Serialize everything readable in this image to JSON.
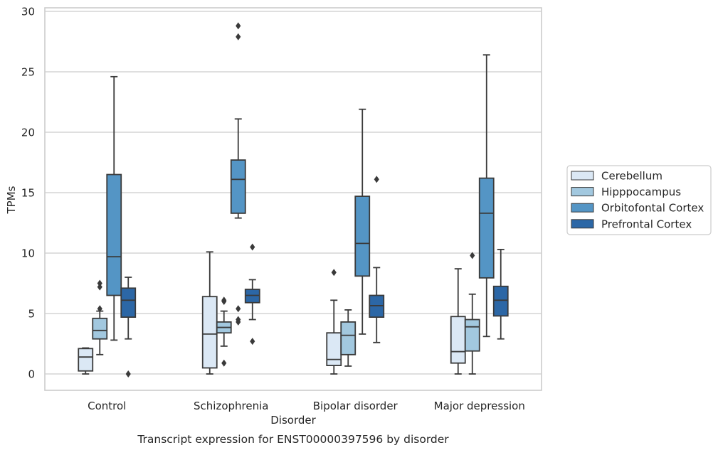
{
  "chart_data": {
    "type": "box",
    "title": "Transcript expression for ENST00000397596 by disorder",
    "xlabel": "Disorder",
    "ylabel": "TPMs",
    "ylim": [
      -1.3,
      30.3
    ],
    "yticks": [
      0,
      5,
      10,
      15,
      20,
      25,
      30
    ],
    "grid": "horizontal",
    "legend_position": "right",
    "categories": [
      "Control",
      "Schizophrenia",
      "Bipolar disorder",
      "Major depression"
    ],
    "series": [
      {
        "name": "Cerebellum",
        "color": "#dbe8f5",
        "boxes": [
          {
            "whisker_low": 0.0,
            "q1": 0.25,
            "median": 1.4,
            "q3": 2.1,
            "whisker_high": 2.15,
            "outliers": []
          },
          {
            "whisker_low": 0.0,
            "q1": 0.5,
            "median": 3.3,
            "q3": 6.4,
            "whisker_high": 10.1,
            "outliers": []
          },
          {
            "whisker_low": 0.0,
            "q1": 0.7,
            "median": 1.2,
            "q3": 3.4,
            "whisker_high": 6.1,
            "outliers": [
              8.4
            ]
          },
          {
            "whisker_low": 0.0,
            "q1": 0.9,
            "median": 1.85,
            "q3": 4.75,
            "whisker_high": 8.7,
            "outliers": []
          }
        ]
      },
      {
        "name": "Hipppocampus",
        "color": "#a2c8df",
        "boxes": [
          {
            "whisker_low": 1.6,
            "q1": 2.9,
            "median": 3.6,
            "q3": 4.6,
            "whisker_high": 5.2,
            "outliers": [
              5.4,
              7.2,
              7.5
            ]
          },
          {
            "whisker_low": 2.3,
            "q1": 3.4,
            "median": 3.85,
            "q3": 4.3,
            "whisker_high": 5.2,
            "outliers": [
              0.9,
              6.0,
              6.1
            ]
          },
          {
            "whisker_low": 0.65,
            "q1": 1.6,
            "median": 3.2,
            "q3": 4.3,
            "whisker_high": 5.3,
            "outliers": []
          },
          {
            "whisker_low": 0.0,
            "q1": 1.9,
            "median": 3.9,
            "q3": 4.5,
            "whisker_high": 6.6,
            "outliers": [
              9.8
            ]
          }
        ]
      },
      {
        "name": "Orbitofontal Cortex",
        "color": "#5495c5",
        "boxes": [
          {
            "whisker_low": 2.8,
            "q1": 6.5,
            "median": 9.7,
            "q3": 16.5,
            "whisker_high": 24.6,
            "outliers": []
          },
          {
            "whisker_low": 12.9,
            "q1": 13.3,
            "median": 16.1,
            "q3": 17.7,
            "whisker_high": 21.1,
            "outliers": [
              4.3,
              4.5,
              5.4,
              27.9,
              28.8
            ]
          },
          {
            "whisker_low": 3.3,
            "q1": 8.1,
            "median": 10.8,
            "q3": 14.7,
            "whisker_high": 21.9,
            "outliers": []
          },
          {
            "whisker_low": 3.1,
            "q1": 7.95,
            "median": 13.3,
            "q3": 16.2,
            "whisker_high": 26.4,
            "outliers": []
          }
        ]
      },
      {
        "name": "Prefrontal Cortex",
        "color": "#2c67a6",
        "boxes": [
          {
            "whisker_low": 2.9,
            "q1": 4.7,
            "median": 6.1,
            "q3": 7.1,
            "whisker_high": 8.0,
            "outliers": [
              0.0
            ]
          },
          {
            "whisker_low": 4.5,
            "q1": 5.9,
            "median": 6.5,
            "q3": 7.0,
            "whisker_high": 7.8,
            "outliers": [
              2.7,
              10.5
            ]
          },
          {
            "whisker_low": 2.6,
            "q1": 4.7,
            "median": 5.65,
            "q3": 6.5,
            "whisker_high": 8.8,
            "outliers": [
              16.1
            ]
          },
          {
            "whisker_low": 2.9,
            "q1": 4.8,
            "median": 6.1,
            "q3": 7.25,
            "whisker_high": 10.3,
            "outliers": []
          }
        ]
      }
    ]
  }
}
